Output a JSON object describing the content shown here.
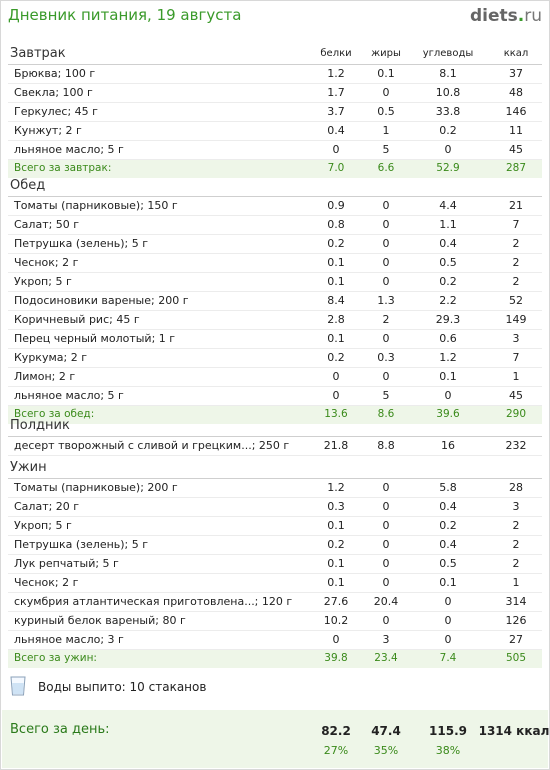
{
  "header": {
    "title": "Дневник питания, 19 августа",
    "logo_main": "diets",
    "logo_dot": ".",
    "logo_tld": "ru"
  },
  "columns": [
    "белки",
    "жиры",
    "углеводы",
    "ккал"
  ],
  "meals": [
    {
      "name": "Завтрак",
      "rows": [
        [
          "Брюква; 100 г",
          "1.2",
          "0.1",
          "8.1",
          "37"
        ],
        [
          "Свекла; 100 г",
          "1.7",
          "0",
          "10.8",
          "48"
        ],
        [
          "Геркулес; 45 г",
          "3.7",
          "0.5",
          "33.8",
          "146"
        ],
        [
          "Кунжут; 2 г",
          "0.4",
          "1",
          "0.2",
          "11"
        ],
        [
          "льняное масло; 5 г",
          "0",
          "5",
          "0",
          "45"
        ]
      ],
      "total": [
        "Всего за завтрак:",
        "7.0",
        "6.6",
        "52.9",
        "287"
      ]
    },
    {
      "name": "Обед",
      "rows": [
        [
          "Томаты (парниковые); 150 г",
          "0.9",
          "0",
          "4.4",
          "21"
        ],
        [
          "Салат; 50 г",
          "0.8",
          "0",
          "1.1",
          "7"
        ],
        [
          "Петрушка (зелень); 5 г",
          "0.2",
          "0",
          "0.4",
          "2"
        ],
        [
          "Чеснок; 2 г",
          "0.1",
          "0",
          "0.5",
          "2"
        ],
        [
          "Укроп; 5 г",
          "0.1",
          "0",
          "0.2",
          "2"
        ],
        [
          "Подосиновики вареные; 200 г",
          "8.4",
          "1.3",
          "2.2",
          "52"
        ],
        [
          "Коричневый рис; 45 г",
          "2.8",
          "2",
          "29.3",
          "149"
        ],
        [
          "Перец черный молотый; 1 г",
          "0.1",
          "0",
          "0.6",
          "3"
        ],
        [
          "Куркума; 2 г",
          "0.2",
          "0.3",
          "1.2",
          "7"
        ],
        [
          "Лимон; 2 г",
          "0",
          "0",
          "0.1",
          "1"
        ],
        [
          "льняное масло; 5 г",
          "0",
          "5",
          "0",
          "45"
        ]
      ],
      "total": [
        "Всего за обед:",
        "13.6",
        "8.6",
        "39.6",
        "290"
      ]
    },
    {
      "name": "Полдник",
      "rows": [
        [
          "десерт творожный с сливой и грецким...; 250 г",
          "21.8",
          "8.8",
          "16",
          "232"
        ]
      ]
    },
    {
      "name": "Ужин",
      "rows": [
        [
          "Томаты (парниковые); 200 г",
          "1.2",
          "0",
          "5.8",
          "28"
        ],
        [
          "Салат; 20 г",
          "0.3",
          "0",
          "0.4",
          "3"
        ],
        [
          "Укроп; 5 г",
          "0.1",
          "0",
          "0.2",
          "2"
        ],
        [
          "Петрушка (зелень); 5 г",
          "0.2",
          "0",
          "0.4",
          "2"
        ],
        [
          "Лук репчатый; 5 г",
          "0.1",
          "0",
          "0.5",
          "2"
        ],
        [
          "Чеснок; 2 г",
          "0.1",
          "0",
          "0.1",
          "1"
        ],
        [
          "скумбрия атлантическая приготовлена...; 120 г",
          "27.6",
          "20.4",
          "0",
          "314"
        ],
        [
          "куриный белок вареный; 80 г",
          "10.2",
          "0",
          "0",
          "126"
        ],
        [
          "льняное масло; 3 г",
          "0",
          "3",
          "0",
          "27"
        ]
      ],
      "total": [
        "Всего за ужин:",
        "39.8",
        "23.4",
        "7.4",
        "505"
      ]
    }
  ],
  "water": {
    "text": "Воды выпито: 10 стаканов"
  },
  "day_total": {
    "label": "Всего за день:",
    "values": [
      "82.2",
      "47.4",
      "115.9",
      "1314 ккал"
    ],
    "percents": [
      "27%",
      "35%",
      "38%"
    ]
  }
}
